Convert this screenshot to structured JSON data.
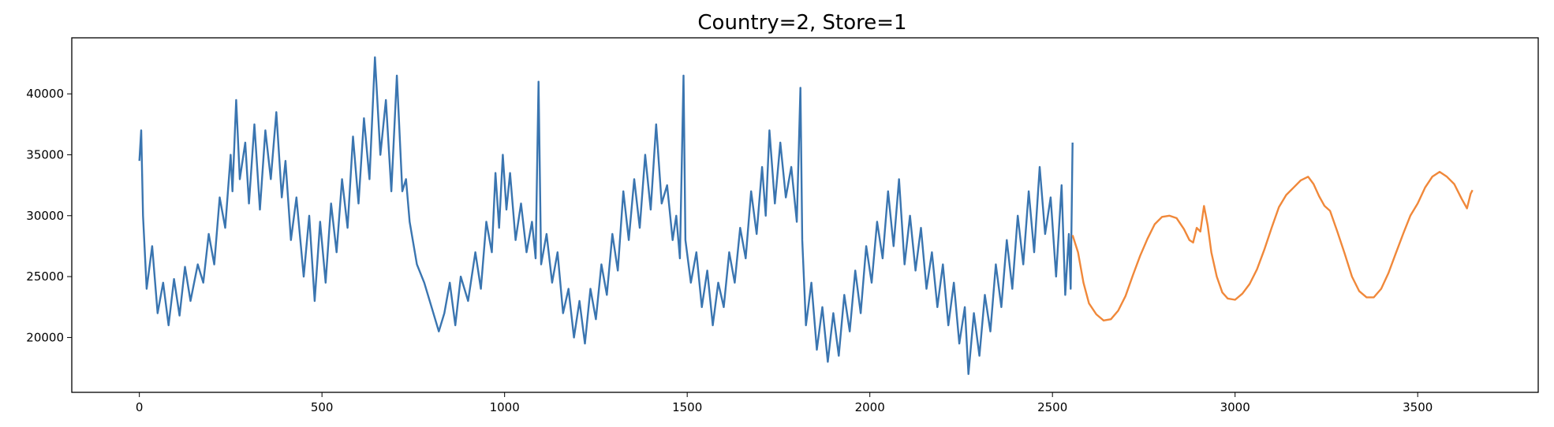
{
  "chart_data": {
    "type": "line",
    "title": "Country=2, Store=1",
    "xlabel": "",
    "ylabel": "",
    "xlim": [
      -185,
      3830
    ],
    "ylim": [
      15500,
      44600
    ],
    "x_ticks": [
      0,
      500,
      1000,
      1500,
      2000,
      2500,
      3000,
      3500
    ],
    "y_ticks": [
      20000,
      25000,
      30000,
      35000,
      40000
    ],
    "grid": false,
    "legend": "none",
    "colors": {
      "history": "#3a75b0",
      "forecast": "#f0883a"
    },
    "series": [
      {
        "key": "history",
        "color": "#3a75b0",
        "linewidth": 2.4,
        "points": [
          [
            0,
            34500
          ],
          [
            5,
            37000
          ],
          [
            10,
            30000
          ],
          [
            20,
            24000
          ],
          [
            35,
            27500
          ],
          [
            50,
            22000
          ],
          [
            65,
            24500
          ],
          [
            80,
            21000
          ],
          [
            95,
            24800
          ],
          [
            110,
            21800
          ],
          [
            125,
            25800
          ],
          [
            140,
            23000
          ],
          [
            160,
            26000
          ],
          [
            175,
            24500
          ],
          [
            190,
            28500
          ],
          [
            205,
            26000
          ],
          [
            220,
            31500
          ],
          [
            235,
            29000
          ],
          [
            250,
            35000
          ],
          [
            255,
            32000
          ],
          [
            265,
            39500
          ],
          [
            275,
            33000
          ],
          [
            290,
            36000
          ],
          [
            300,
            31000
          ],
          [
            315,
            37500
          ],
          [
            330,
            30500
          ],
          [
            345,
            37000
          ],
          [
            360,
            33000
          ],
          [
            375,
            38500
          ],
          [
            390,
            31500
          ],
          [
            400,
            34500
          ],
          [
            415,
            28000
          ],
          [
            430,
            31500
          ],
          [
            450,
            25000
          ],
          [
            465,
            30000
          ],
          [
            480,
            23000
          ],
          [
            495,
            29500
          ],
          [
            510,
            24500
          ],
          [
            525,
            31000
          ],
          [
            540,
            27000
          ],
          [
            555,
            33000
          ],
          [
            570,
            29000
          ],
          [
            585,
            36500
          ],
          [
            600,
            31000
          ],
          [
            615,
            38000
          ],
          [
            630,
            33000
          ],
          [
            645,
            43000
          ],
          [
            660,
            35000
          ],
          [
            675,
            39500
          ],
          [
            690,
            32000
          ],
          [
            705,
            41500
          ],
          [
            720,
            32000
          ],
          [
            730,
            33000
          ],
          [
            740,
            29500
          ],
          [
            760,
            26000
          ],
          [
            780,
            24500
          ],
          [
            800,
            22500
          ],
          [
            820,
            20500
          ],
          [
            835,
            22000
          ],
          [
            850,
            24500
          ],
          [
            865,
            21000
          ],
          [
            880,
            25000
          ],
          [
            900,
            23000
          ],
          [
            920,
            27000
          ],
          [
            935,
            24000
          ],
          [
            950,
            29500
          ],
          [
            965,
            27000
          ],
          [
            975,
            33500
          ],
          [
            985,
            29000
          ],
          [
            995,
            35000
          ],
          [
            1005,
            30500
          ],
          [
            1015,
            33500
          ],
          [
            1030,
            28000
          ],
          [
            1045,
            31000
          ],
          [
            1060,
            27000
          ],
          [
            1075,
            29500
          ],
          [
            1085,
            26500
          ],
          [
            1093,
            41000
          ],
          [
            1100,
            26000
          ],
          [
            1115,
            28500
          ],
          [
            1130,
            24500
          ],
          [
            1145,
            27000
          ],
          [
            1160,
            22000
          ],
          [
            1175,
            24000
          ],
          [
            1190,
            20000
          ],
          [
            1205,
            23000
          ],
          [
            1220,
            19500
          ],
          [
            1235,
            24000
          ],
          [
            1250,
            21500
          ],
          [
            1265,
            26000
          ],
          [
            1280,
            23500
          ],
          [
            1295,
            28500
          ],
          [
            1310,
            25500
          ],
          [
            1325,
            32000
          ],
          [
            1340,
            28000
          ],
          [
            1355,
            33000
          ],
          [
            1370,
            29000
          ],
          [
            1385,
            35000
          ],
          [
            1400,
            30500
          ],
          [
            1415,
            37500
          ],
          [
            1430,
            31000
          ],
          [
            1445,
            32500
          ],
          [
            1460,
            28000
          ],
          [
            1470,
            30000
          ],
          [
            1480,
            26500
          ],
          [
            1490,
            41500
          ],
          [
            1495,
            28000
          ],
          [
            1510,
            24500
          ],
          [
            1525,
            27000
          ],
          [
            1540,
            22500
          ],
          [
            1555,
            25500
          ],
          [
            1570,
            21000
          ],
          [
            1585,
            24500
          ],
          [
            1600,
            22500
          ],
          [
            1615,
            27000
          ],
          [
            1630,
            24500
          ],
          [
            1645,
            29000
          ],
          [
            1660,
            26500
          ],
          [
            1675,
            32000
          ],
          [
            1690,
            28500
          ],
          [
            1705,
            34000
          ],
          [
            1715,
            30000
          ],
          [
            1725,
            37000
          ],
          [
            1740,
            31000
          ],
          [
            1755,
            36000
          ],
          [
            1770,
            31500
          ],
          [
            1785,
            34000
          ],
          [
            1800,
            29500
          ],
          [
            1810,
            40500
          ],
          [
            1815,
            28000
          ],
          [
            1825,
            21000
          ],
          [
            1840,
            24500
          ],
          [
            1855,
            19000
          ],
          [
            1870,
            22500
          ],
          [
            1885,
            18000
          ],
          [
            1900,
            22000
          ],
          [
            1915,
            18500
          ],
          [
            1930,
            23500
          ],
          [
            1945,
            20500
          ],
          [
            1960,
            25500
          ],
          [
            1975,
            22000
          ],
          [
            1990,
            27500
          ],
          [
            2005,
            24500
          ],
          [
            2020,
            29500
          ],
          [
            2035,
            26500
          ],
          [
            2050,
            32000
          ],
          [
            2065,
            27500
          ],
          [
            2080,
            33000
          ],
          [
            2095,
            26000
          ],
          [
            2110,
            30000
          ],
          [
            2125,
            25500
          ],
          [
            2140,
            29000
          ],
          [
            2155,
            24000
          ],
          [
            2170,
            27000
          ],
          [
            2185,
            22500
          ],
          [
            2200,
            26000
          ],
          [
            2215,
            21000
          ],
          [
            2230,
            24500
          ],
          [
            2245,
            19500
          ],
          [
            2260,
            22500
          ],
          [
            2270,
            17000
          ],
          [
            2285,
            22000
          ],
          [
            2300,
            18500
          ],
          [
            2315,
            23500
          ],
          [
            2330,
            20500
          ],
          [
            2345,
            26000
          ],
          [
            2360,
            22500
          ],
          [
            2375,
            28000
          ],
          [
            2390,
            24000
          ],
          [
            2405,
            30000
          ],
          [
            2420,
            26000
          ],
          [
            2435,
            32000
          ],
          [
            2450,
            27000
          ],
          [
            2465,
            34000
          ],
          [
            2480,
            28500
          ],
          [
            2495,
            31500
          ],
          [
            2510,
            25000
          ],
          [
            2525,
            32500
          ],
          [
            2535,
            23500
          ],
          [
            2545,
            28500
          ],
          [
            2550,
            24000
          ],
          [
            2555,
            36000
          ]
        ]
      },
      {
        "key": "forecast",
        "color": "#f0883a",
        "linewidth": 2.4,
        "points": [
          [
            2555,
            28400
          ],
          [
            2570,
            27000
          ],
          [
            2585,
            24500
          ],
          [
            2600,
            22800
          ],
          [
            2620,
            21900
          ],
          [
            2640,
            21400
          ],
          [
            2660,
            21500
          ],
          [
            2680,
            22200
          ],
          [
            2700,
            23400
          ],
          [
            2720,
            25100
          ],
          [
            2740,
            26700
          ],
          [
            2760,
            28100
          ],
          [
            2780,
            29300
          ],
          [
            2800,
            29900
          ],
          [
            2820,
            30000
          ],
          [
            2840,
            29800
          ],
          [
            2860,
            28900
          ],
          [
            2875,
            28000
          ],
          [
            2885,
            27800
          ],
          [
            2895,
            29000
          ],
          [
            2905,
            28700
          ],
          [
            2915,
            30800
          ],
          [
            2925,
            29200
          ],
          [
            2935,
            27000
          ],
          [
            2950,
            25000
          ],
          [
            2965,
            23700
          ],
          [
            2980,
            23200
          ],
          [
            3000,
            23100
          ],
          [
            3020,
            23600
          ],
          [
            3040,
            24400
          ],
          [
            3060,
            25600
          ],
          [
            3080,
            27200
          ],
          [
            3100,
            29000
          ],
          [
            3120,
            30700
          ],
          [
            3140,
            31700
          ],
          [
            3160,
            32300
          ],
          [
            3180,
            32900
          ],
          [
            3200,
            33200
          ],
          [
            3215,
            32600
          ],
          [
            3230,
            31600
          ],
          [
            3245,
            30800
          ],
          [
            3260,
            30400
          ],
          [
            3280,
            28700
          ],
          [
            3300,
            26900
          ],
          [
            3320,
            25000
          ],
          [
            3340,
            23800
          ],
          [
            3360,
            23300
          ],
          [
            3380,
            23300
          ],
          [
            3400,
            24000
          ],
          [
            3420,
            25300
          ],
          [
            3440,
            26900
          ],
          [
            3460,
            28500
          ],
          [
            3480,
            30000
          ],
          [
            3500,
            31000
          ],
          [
            3520,
            32300
          ],
          [
            3540,
            33200
          ],
          [
            3560,
            33600
          ],
          [
            3580,
            33200
          ],
          [
            3600,
            32600
          ],
          [
            3620,
            31400
          ],
          [
            3635,
            30600
          ],
          [
            3645,
            31800
          ],
          [
            3650,
            32100
          ]
        ]
      }
    ]
  }
}
